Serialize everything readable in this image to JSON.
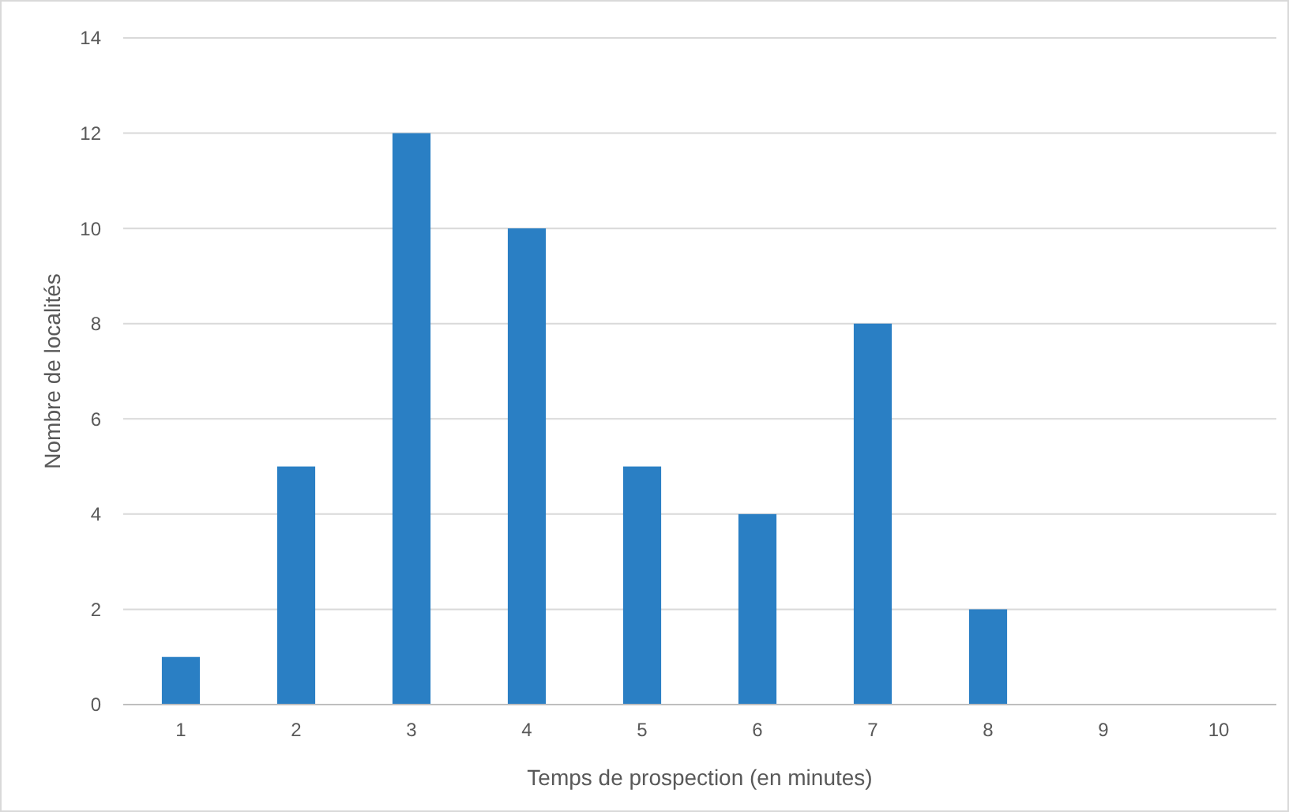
{
  "chart_data": {
    "type": "bar",
    "xlabel": "Temps de prospection (en minutes)",
    "ylabel": "Nombre de localités",
    "categories": [
      "1",
      "2",
      "3",
      "4",
      "5",
      "6",
      "7",
      "8",
      "9",
      "10"
    ],
    "values": [
      1,
      5,
      12,
      10,
      5,
      4,
      8,
      2,
      0,
      0
    ],
    "color": "#2a7fc4",
    "ylim": [
      0,
      14
    ],
    "yticks": [
      0,
      2,
      4,
      6,
      8,
      10,
      12,
      14
    ],
    "grid": "y"
  }
}
